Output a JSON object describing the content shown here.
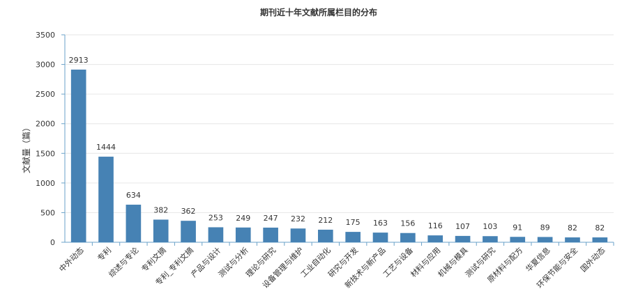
{
  "chart_data": {
    "type": "bar",
    "title": "期刊近十年文献所属栏目的分布",
    "xlabel": "",
    "ylabel": "文献量（篇）",
    "ylim": [
      0,
      3500
    ],
    "yticks": [
      0,
      500,
      1000,
      1500,
      2000,
      2500,
      3000,
      3500
    ],
    "grid": true,
    "bar_color": "#4682b4",
    "categories": [
      "中外动态",
      "专利",
      "综述与专论",
      "专利文摘",
      "专利_专利文摘",
      "产品与设计",
      "测试与分析",
      "理论与研究",
      "设备管理与维护",
      "工业自动化",
      "研究与开发",
      "新技术与新产品",
      "工艺与设备",
      "材料与应用",
      "机械与模具",
      "测试与研究",
      "原材料与配方",
      "华夏信息",
      "环保节能与安全",
      "国外动态"
    ],
    "values": [
      2913,
      1444,
      634,
      382,
      362,
      253,
      249,
      247,
      232,
      212,
      175,
      163,
      156,
      116,
      107,
      103,
      91,
      89,
      82,
      82
    ]
  }
}
